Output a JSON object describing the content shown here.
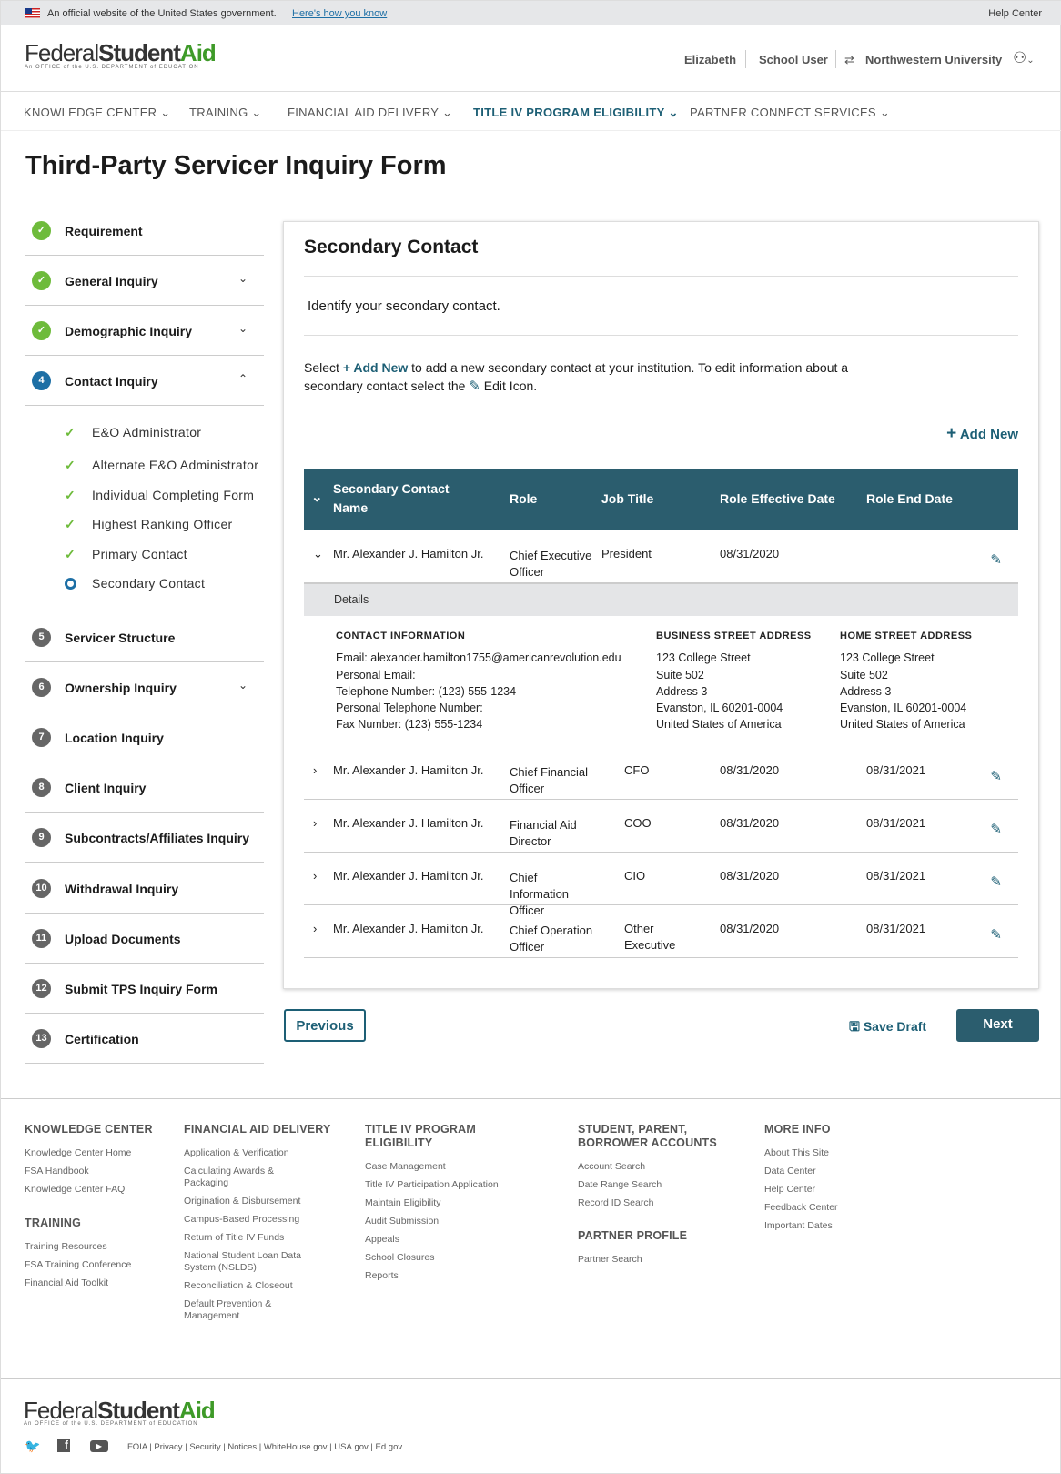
{
  "banner": {
    "text": "An official website of the United States government.",
    "link": "Here's how you know",
    "help": "Help Center"
  },
  "logo": {
    "federal": "Federal",
    "student": "Student",
    "aid": "Aid",
    "sub": "An OFFICE of the U.S. DEPARTMENT of EDUCATION"
  },
  "user": {
    "name": "Elizabeth",
    "role": "School User",
    "institution": "Northwestern University"
  },
  "nav": [
    "KNOWLEDGE CENTER",
    "TRAINING",
    "FINANCIAL AID DELIVERY",
    "TITLE IV PROGRAM ELIGIBILITY",
    "PARTNER CONNECT SERVICES"
  ],
  "page_title": "Third-Party Servicer Inquiry Form",
  "steps": [
    {
      "label": "Requirement",
      "status": "done"
    },
    {
      "label": "General Inquiry",
      "status": "done"
    },
    {
      "label": "Demographic Inquiry",
      "status": "done"
    },
    {
      "label": "Contact Inquiry",
      "status": "current",
      "num": "4"
    },
    {
      "label": "Servicer Structure",
      "num": "5"
    },
    {
      "label": "Ownership Inquiry",
      "num": "6"
    },
    {
      "label": "Location Inquiry",
      "num": "7"
    },
    {
      "label": "Client Inquiry",
      "num": "8"
    },
    {
      "label": "Subcontracts/Affiliates Inquiry",
      "num": "9"
    },
    {
      "label": "Withdrawal Inquiry",
      "num": "10"
    },
    {
      "label": "Upload Documents",
      "num": "11"
    },
    {
      "label": "Submit TPS Inquiry Form",
      "num": "12"
    },
    {
      "label": "Certification",
      "num": "13"
    }
  ],
  "substeps": [
    "E&O Administrator",
    "Alternate E&O Administrator",
    "Individual Completing Form",
    "Highest Ranking Officer",
    "Primary Contact",
    "Secondary Contact"
  ],
  "card": {
    "title": "Secondary Contact",
    "subtitle": "Identify your secondary contact.",
    "instr_1": "Select ",
    "instr_add": "+ Add New",
    "instr_2": " to add a new secondary contact at your institution. To edit information about a",
    "instr_3": "secondary contact select the ",
    "instr_4": " Edit Icon.",
    "add_new": "Add New"
  },
  "table": {
    "headers": [
      "Secondary Contact Name",
      "Role",
      "Job Title",
      "Role Effective Date",
      "Role End Date"
    ],
    "rows": [
      {
        "name": "Mr. Alexander J. Hamilton Jr.",
        "role": "Chief Executive Officer",
        "title": "President",
        "eff": "08/31/2020",
        "end": ""
      },
      {
        "name": "Mr. Alexander J. Hamilton Jr.",
        "role": "Chief Financial Officer",
        "title": "CFO",
        "eff": "08/31/2020",
        "end": "08/31/2021"
      },
      {
        "name": "Mr. Alexander J. Hamilton Jr.",
        "role": "Financial Aid Director",
        "title": "COO",
        "eff": "08/31/2020",
        "end": "08/31/2021"
      },
      {
        "name": "Mr. Alexander J. Hamilton Jr.",
        "role": "Chief Information Officer",
        "title": "CIO",
        "eff": "08/31/2020",
        "end": "08/31/2021"
      },
      {
        "name": "Mr. Alexander J. Hamilton Jr.",
        "role": "Chief Operation Officer",
        "title": "Other Executive",
        "eff": "08/31/2020",
        "end": "08/31/2021"
      }
    ]
  },
  "details": {
    "label": "Details",
    "contact": {
      "heading": "CONTACT INFORMATION",
      "lines": [
        "Email: alexander.hamilton1755@americanrevolution.edu",
        "Personal Email:",
        "Telephone Number: (123) 555-1234",
        "Personal Telephone Number:",
        "Fax Number: (123) 555-1234"
      ]
    },
    "business": {
      "heading": "BUSINESS STREET ADDRESS",
      "lines": [
        "123 College Street",
        "Suite 502",
        "Address 3",
        "Evanston, IL 60201-0004",
        "United States of America"
      ]
    },
    "home": {
      "heading": "HOME STREET ADDRESS",
      "lines": [
        "123 College Street",
        "Suite 502",
        "Address 3",
        "Evanston, IL 60201-0004",
        "United States of America"
      ]
    }
  },
  "buttons": {
    "previous": "Previous",
    "save": "Save Draft",
    "next": "Next"
  },
  "footer": {
    "cols": [
      {
        "heading": "KNOWLEDGE CENTER",
        "links": [
          "Knowledge Center Home",
          "FSA Handbook",
          "Knowledge Center FAQ"
        ]
      },
      {
        "heading": "TRAINING",
        "links": [
          "Training Resources",
          "FSA Training Conference",
          "Financial Aid Toolkit"
        ]
      },
      {
        "heading": "FINANCIAL AID DELIVERY",
        "links": [
          "Application & Verification",
          "Calculating Awards & Packaging",
          "Origination & Disbursement",
          "Campus-Based Processing",
          "Return of Title IV Funds",
          "National Student Loan Data System (NSLDS)",
          "Reconciliation & Closeout",
          "Default Prevention & Management"
        ]
      },
      {
        "heading": "TITLE IV PROGRAM ELIGIBILITY",
        "links": [
          "Case Management",
          "Title IV Participation Application",
          "Maintain Eligibility",
          "Audit Submission",
          "Appeals",
          "School Closures",
          "Reports"
        ]
      },
      {
        "heading": "STUDENT, PARENT, BORROWER ACCOUNTS",
        "links": [
          "Account Search",
          "Date Range Search",
          "Record ID Search"
        ]
      },
      {
        "heading": "PARTNER PROFILE",
        "links": [
          "Partner Search"
        ]
      },
      {
        "heading": "MORE INFO",
        "links": [
          "About This Site",
          "Data Center",
          "Help Center",
          "Feedback Center",
          "Important Dates"
        ]
      }
    ],
    "legal": [
      "FOIA",
      "Privacy",
      "Security",
      "Notices",
      "WhiteHouse.gov",
      "USA.gov",
      "Ed.gov"
    ]
  },
  "colors": {
    "primary": "#1d5f75",
    "table_header": "#2b5d6e",
    "success": "#6ebb3b",
    "aid_green": "#3e9a28"
  }
}
